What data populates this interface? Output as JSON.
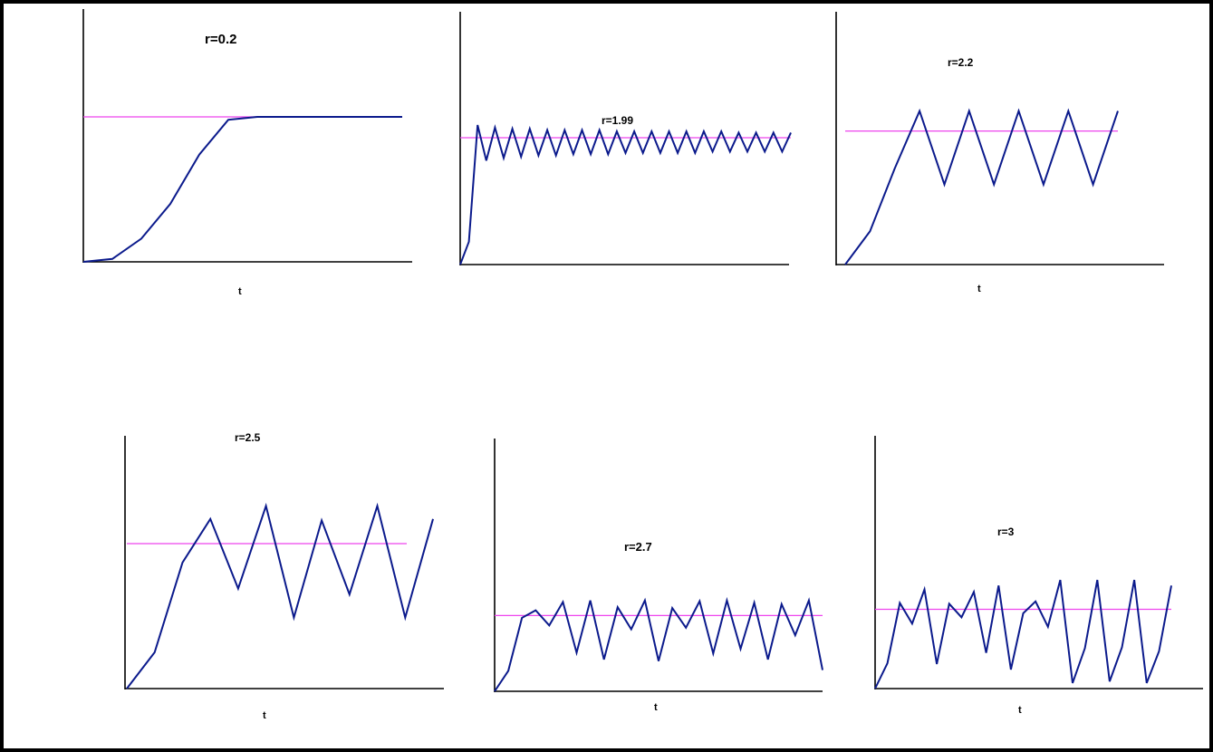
{
  "colors": {
    "series": "#0b1a8c",
    "equilibrium": "#ee44ee"
  },
  "chart_data": [
    {
      "type": "line",
      "title": "r=0.2",
      "xlabel": "t",
      "ylabel": "",
      "y": [
        0,
        0.02,
        0.16,
        0.4,
        0.74,
        0.98,
        1.0,
        1.0,
        1.0,
        1.0,
        1.0,
        1.0
      ],
      "equilibrium": 1.0,
      "ylim": [
        0,
        1.75
      ]
    },
    {
      "type": "line",
      "title": "r=1.99",
      "xlabel": "t",
      "ylabel": "",
      "y": [
        0,
        0.18,
        1.1,
        0.82,
        1.08,
        0.84,
        1.07,
        0.85,
        1.07,
        0.86,
        1.06,
        0.86,
        1.06,
        0.87,
        1.06,
        0.87,
        1.06,
        0.87,
        1.05,
        0.88,
        1.05,
        0.88,
        1.05,
        0.88,
        1.05,
        0.88,
        1.05,
        0.88,
        1.05,
        0.89,
        1.05,
        0.89,
        1.04,
        0.89,
        1.04,
        0.89,
        1.04,
        0.89,
        1.04
      ],
      "equilibrium": 1.0,
      "ylim": [
        0,
        2.0
      ]
    },
    {
      "type": "line",
      "title": "r=2.2",
      "xlabel": "t",
      "ylabel": "",
      "y": [
        0,
        0.25,
        0.72,
        1.15,
        0.6,
        1.15,
        0.6,
        1.15,
        0.6,
        1.15,
        0.6,
        1.15
      ],
      "equilibrium": 1.0,
      "ylim": [
        0,
        1.9
      ]
    },
    {
      "type": "line",
      "title": "r=2.5",
      "xlabel": "t",
      "ylabel": "",
      "y": [
        0,
        0.25,
        0.87,
        1.17,
        0.69,
        1.26,
        0.49,
        1.16,
        0.65,
        1.26,
        0.49,
        1.17
      ],
      "equilibrium": 1.0,
      "ylim": [
        0,
        1.75
      ]
    },
    {
      "type": "line",
      "title": "r=2.7",
      "xlabel": "t",
      "ylabel": "",
      "y": [
        0,
        0.27,
        0.97,
        1.07,
        0.87,
        1.18,
        0.51,
        1.2,
        0.42,
        1.11,
        0.82,
        1.2,
        0.4,
        1.1,
        0.84,
        1.19,
        0.5,
        1.2,
        0.56,
        1.17,
        0.42,
        1.15,
        0.74,
        1.2,
        0.28
      ],
      "equilibrium": 1.0,
      "ylim": [
        0,
        3.35
      ]
    },
    {
      "type": "line",
      "title": "r=3",
      "xlabel": "t",
      "ylabel": "",
      "y": [
        0,
        0.32,
        1.08,
        0.82,
        1.25,
        0.31,
        1.07,
        0.9,
        1.22,
        0.45,
        1.3,
        0.24,
        0.95,
        1.1,
        0.78,
        1.37,
        0.07,
        0.51,
        1.37,
        0.09,
        0.52,
        1.37,
        0.07,
        0.47,
        1.3
      ],
      "equilibrium": 1.0,
      "ylim": [
        0,
        3.2
      ]
    }
  ]
}
